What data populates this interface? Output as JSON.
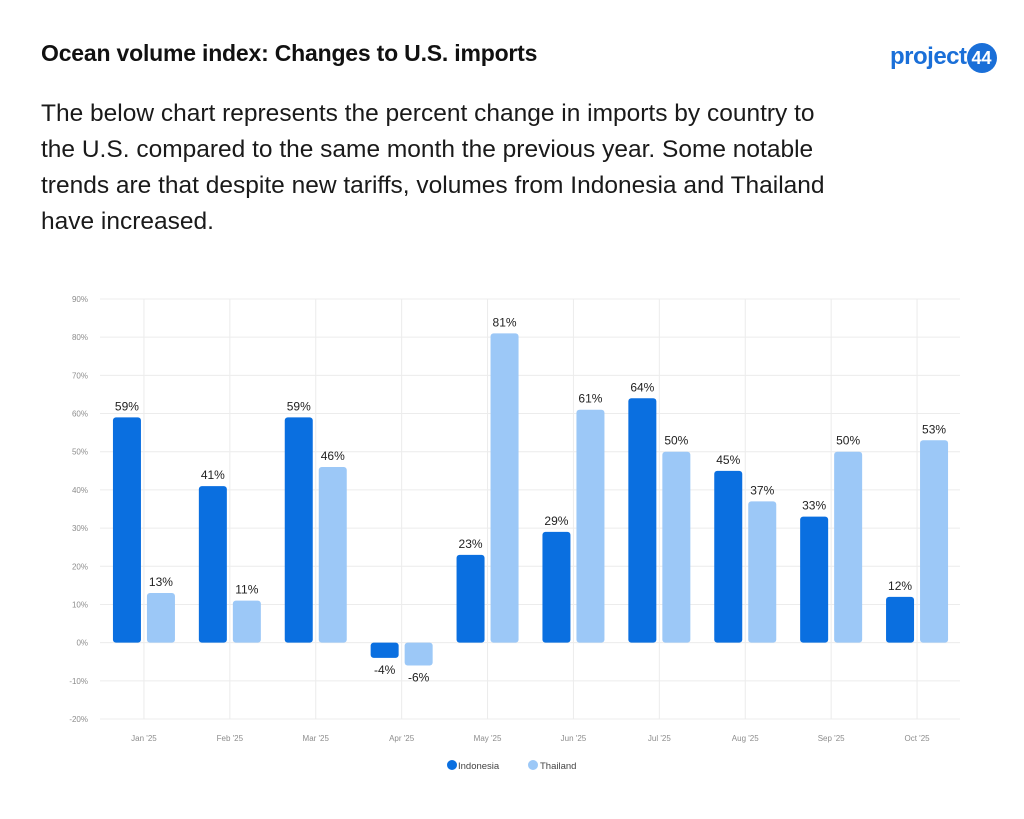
{
  "header": {
    "title": "Ocean volume index: Changes to U.S. imports",
    "logo_text": "project",
    "logo_badge": "44",
    "description": "The below chart represents the percent change in imports by country to the U.S. compared to the same month the previous year. Some notable trends are that despite new tariffs, volumes from Indonesia and Thailand have increased."
  },
  "chart_data": {
    "type": "bar",
    "title": "",
    "xlabel": "",
    "ylabel": "",
    "ylim": [
      -20,
      90
    ],
    "yticks": [
      90,
      80,
      70,
      60,
      50,
      40,
      30,
      20,
      10,
      0,
      -10,
      -20
    ],
    "ytick_labels": [
      "90%",
      "80%",
      "70%",
      "60%",
      "50%",
      "40%",
      "30%",
      "20%",
      "10%",
      "0%",
      "-10%",
      "-20%"
    ],
    "grid": true,
    "legend_position": "bottom-center",
    "categories": [
      "Jan '25",
      "Feb '25",
      "Mar '25",
      "Apr '25",
      "May '25",
      "Jun '25",
      "Jul '25",
      "Aug '25",
      "Sep '25",
      "Oct '25"
    ],
    "series": [
      {
        "name": "Indonesia",
        "color": "#0a6fe0",
        "values": [
          59,
          41,
          59,
          -4,
          23,
          29,
          64,
          45,
          33,
          12
        ],
        "labels": [
          "59%",
          "41%",
          "59%",
          "-4%",
          "23%",
          "29%",
          "64%",
          "45%",
          "33%",
          "12%"
        ]
      },
      {
        "name": "Thailand",
        "color": "#9cc8f7",
        "values": [
          13,
          11,
          46,
          -6,
          81,
          61,
          50,
          37,
          50,
          53
        ],
        "labels": [
          "13%",
          "11%",
          "46%",
          "-6%",
          "81%",
          "61%",
          "50%",
          "37%",
          "50%",
          "53%"
        ]
      }
    ]
  }
}
